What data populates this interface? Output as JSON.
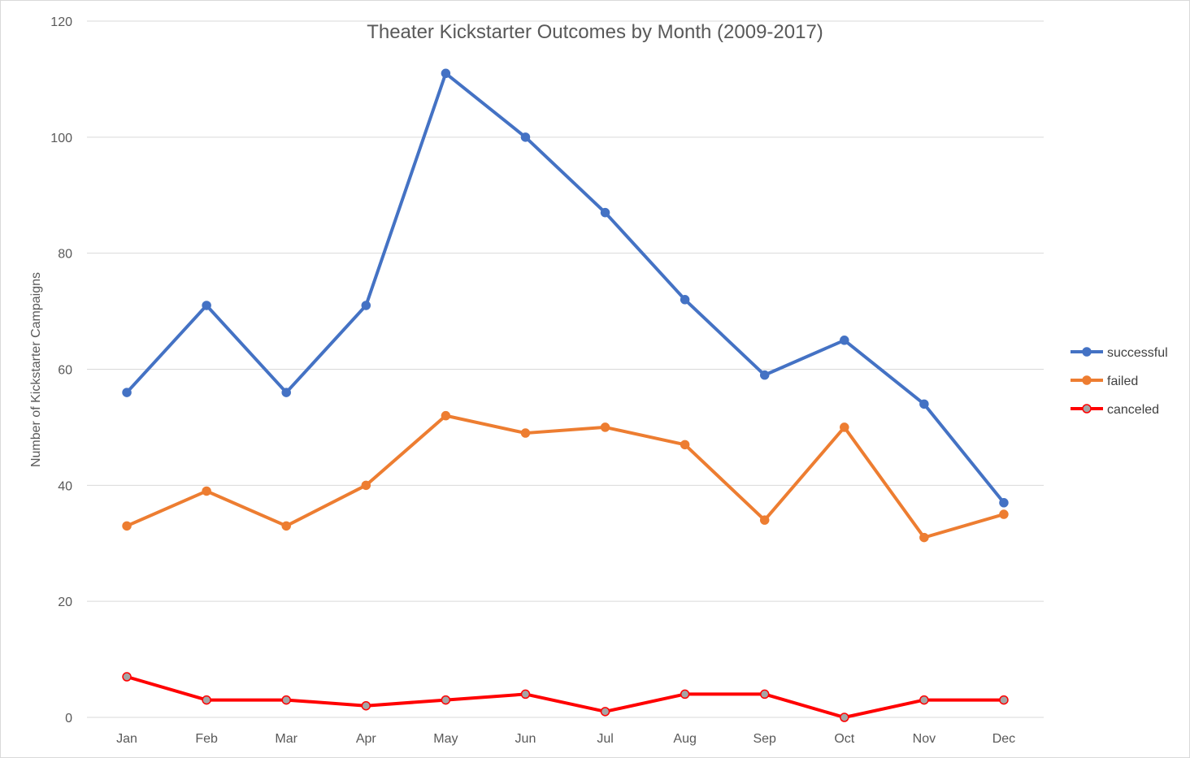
{
  "chart_data": {
    "type": "line",
    "title": "Theater Kickstarter Outcomes by Month (2009-2017)",
    "xlabel": "",
    "ylabel": "Number of Kickstarter Campaigns",
    "categories": [
      "Jan",
      "Feb",
      "Mar",
      "Apr",
      "May",
      "Jun",
      "Jul",
      "Aug",
      "Sep",
      "Oct",
      "Nov",
      "Dec"
    ],
    "ylim": [
      0,
      120
    ],
    "yticks": [
      0,
      20,
      40,
      60,
      80,
      100,
      120
    ],
    "grid": true,
    "legend_position": "right",
    "series": [
      {
        "name": "successful",
        "color": "#4472c4",
        "marker_fill": "#4472c4",
        "values": [
          56,
          71,
          56,
          71,
          111,
          100,
          87,
          72,
          59,
          65,
          54,
          37
        ]
      },
      {
        "name": "failed",
        "color": "#ed7d31",
        "marker_fill": "#ed7d31",
        "values": [
          33,
          39,
          33,
          40,
          52,
          49,
          50,
          47,
          34,
          50,
          31,
          35
        ]
      },
      {
        "name": "canceled",
        "color": "#ff0000",
        "marker_fill": "#a5a5a5",
        "values": [
          7,
          3,
          3,
          2,
          3,
          4,
          1,
          4,
          4,
          0,
          3,
          3
        ]
      }
    ]
  }
}
